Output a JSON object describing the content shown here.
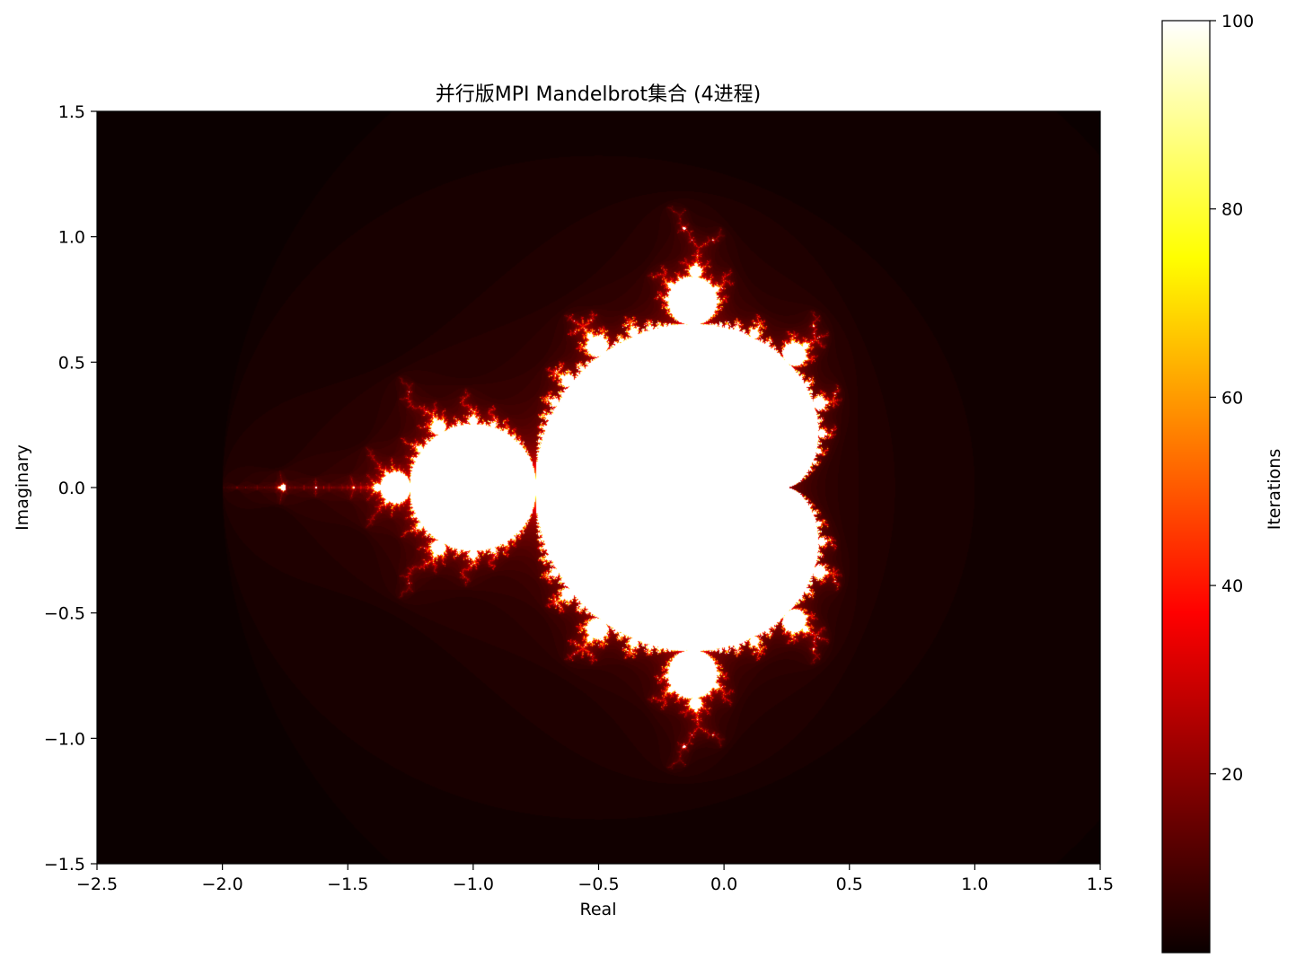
{
  "chart_data": {
    "type": "heatmap",
    "title": "并行版MPI Mandelbrot集合 (4进程)",
    "xlabel": "Real",
    "ylabel": "Imaginary",
    "xlim": [
      -2.5,
      1.5
    ],
    "ylim": [
      -1.5,
      1.5
    ],
    "xticks": [
      -2.5,
      -2.0,
      -1.5,
      -1.0,
      -0.5,
      0.0,
      0.5,
      1.0,
      1.5
    ],
    "xtick_labels": [
      "−2.5",
      "−2.0",
      "−1.5",
      "−1.0",
      "−0.5",
      "0.0",
      "0.5",
      "1.0",
      "1.5"
    ],
    "yticks": [
      -1.5,
      -1.0,
      -0.5,
      0.0,
      0.5,
      1.0,
      1.5
    ],
    "ytick_labels": [
      "−1.5",
      "−1.0",
      "−0.5",
      "0.0",
      "0.5",
      "1.0",
      "1.5"
    ],
    "colormap": "hot",
    "max_iterations": 100,
    "colorbar": {
      "label": "Iterations",
      "range": [
        1,
        100
      ],
      "ticks": [
        20,
        40,
        60,
        80,
        100
      ],
      "tick_labels": [
        "20",
        "40",
        "60",
        "80",
        "100"
      ]
    },
    "grid": false
  }
}
